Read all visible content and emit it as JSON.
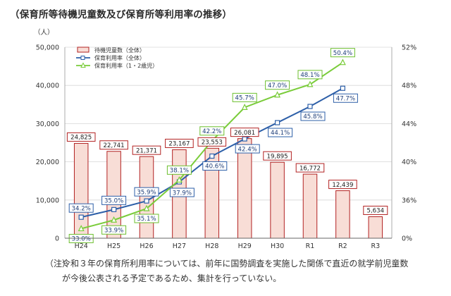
{
  "title": "（保育所等待機児童数及び保育所等利用率の推移）",
  "note": {
    "head": "（注）",
    "line1": "令和３年の保育所利用率については、前年に国勢調査を実施した関係で直近の就学前児童数",
    "line2": "が今後公表される予定であるため、集計を行っていない。"
  },
  "colors": {
    "bar_fill": "#f8ddd6",
    "bar_stroke": "#b22222",
    "rate_line": "#2d5fa8",
    "rate12_line": "#7acc3a",
    "label_box_bar": "#b22222",
    "label_box_rate": "#2d5fa8",
    "label_box_rate12": "#6cbf2e"
  },
  "chart_data": {
    "type": "bar",
    "categories": [
      "H24",
      "H25",
      "H26",
      "H27",
      "H28",
      "H29",
      "H30",
      "R1",
      "R2",
      "R3"
    ],
    "y_left": {
      "unit": "（人）",
      "ylim": [
        0,
        50000
      ],
      "ticks": [
        "0",
        "10,000",
        "20,000",
        "30,000",
        "40,000",
        "50,000"
      ],
      "tick_values": [
        0,
        10000,
        20000,
        30000,
        40000,
        50000
      ]
    },
    "y_right": {
      "ylim": [
        32,
        52
      ],
      "ticks": [
        "0%",
        "36%",
        "40%",
        "44%",
        "48%",
        "52%"
      ],
      "tick_values": [
        32,
        36,
        40,
        44,
        48,
        52
      ]
    },
    "legend_placement": "top-left",
    "grid": true,
    "series": [
      {
        "name": "待機児童数（全体）",
        "kind": "bar",
        "axis": "left",
        "values": [
          24825,
          22741,
          21371,
          23167,
          23553,
          26081,
          19895,
          16772,
          12439,
          5634
        ],
        "labels": [
          "24,825",
          "22,741",
          "21,371",
          "23,167",
          "23,553",
          "26,081",
          "19,895",
          "16,772",
          "12,439",
          "5,634"
        ]
      },
      {
        "name": "保育利用率（全体）",
        "kind": "line",
        "axis": "right",
        "values": [
          34.2,
          35.0,
          35.9,
          37.9,
          40.6,
          42.4,
          44.1,
          45.8,
          47.7,
          null
        ],
        "labels": [
          "34.2%",
          "35.0%",
          "35.9%",
          "37.9%",
          "40.6%",
          "42.4%",
          "44.1%",
          "45.8%",
          "47.7%",
          null
        ]
      },
      {
        "name": "保育利用率（1・2歳児）",
        "kind": "line",
        "axis": "right",
        "values": [
          33.0,
          33.9,
          35.1,
          38.1,
          42.2,
          45.7,
          47.0,
          48.1,
          50.4,
          null
        ],
        "labels": [
          "33.0%",
          "33.9%",
          "35.1%",
          "38.1%",
          "42.2%",
          "45.7%",
          "47.0%",
          "48.1%",
          "50.4%",
          null
        ]
      }
    ]
  }
}
